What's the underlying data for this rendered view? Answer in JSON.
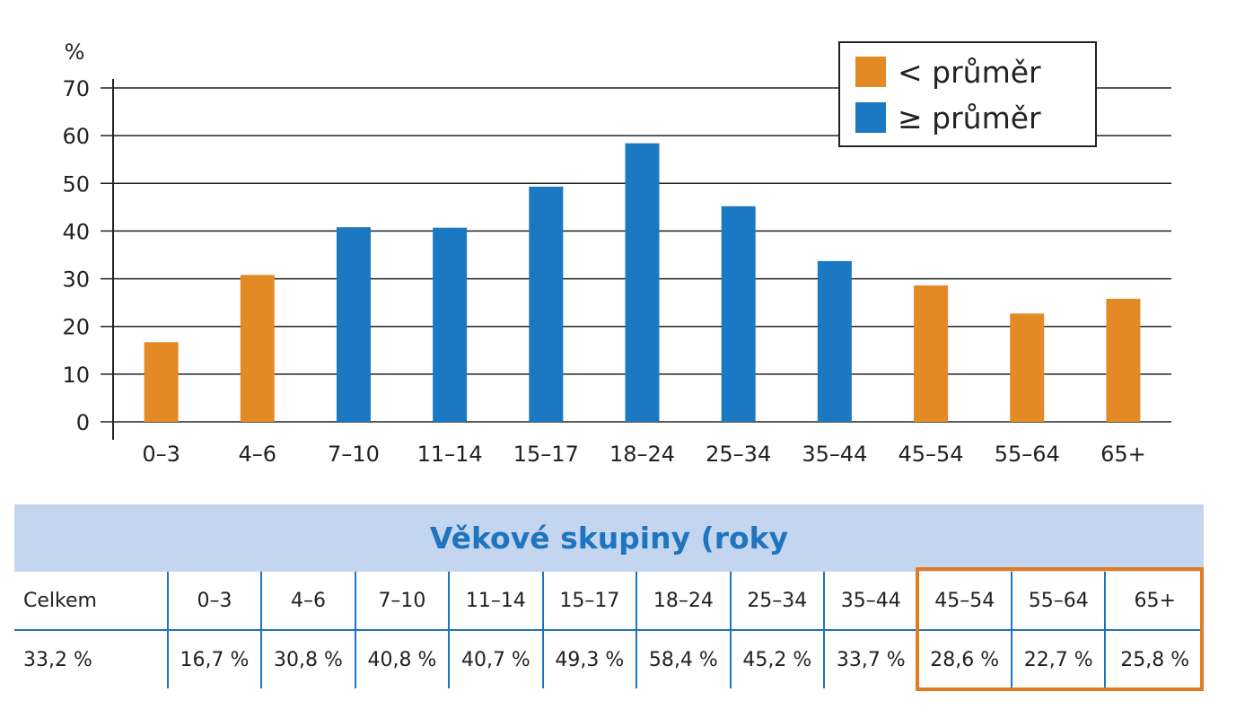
{
  "chart_data": {
    "type": "bar",
    "y_unit_label": "%",
    "ylim": [
      0,
      70
    ],
    "y_ticks": [
      0,
      10,
      20,
      30,
      40,
      50,
      60,
      70
    ],
    "grid": true,
    "categories": [
      "0–3",
      "4–6",
      "7–10",
      "11–14",
      "15–17",
      "18–24",
      "25–34",
      "35–44",
      "45–54",
      "55–64",
      "65+"
    ],
    "values": [
      16.7,
      30.8,
      40.8,
      40.7,
      49.3,
      58.4,
      45.2,
      33.7,
      28.6,
      22.7,
      25.8
    ],
    "groups": [
      "below",
      "below",
      "above",
      "above",
      "above",
      "above",
      "above",
      "above",
      "below",
      "below",
      "below"
    ],
    "legend": {
      "position": "top-right",
      "items": [
        {
          "key": "below",
          "label": "< průměr",
          "color": "#e48a24"
        },
        {
          "key": "above",
          "label": "≥ průměr",
          "color": "#1b78c3"
        }
      ]
    }
  },
  "table": {
    "title": "Věkové skupiny (roky",
    "headers": [
      "Celkem",
      "0–3",
      "4–6",
      "7–10",
      "11–14",
      "15–17",
      "18–24",
      "25–34",
      "35–44",
      "45–54",
      "55–64",
      "65+"
    ],
    "values": [
      "33,2 %",
      "16,7 %",
      "30,8 %",
      "40,8 %",
      "40,7 %",
      "49,3 %",
      "58,4 %",
      "45,2 %",
      "33,7 %",
      "28,6 %",
      "22,7 %",
      "25,8 %"
    ]
  },
  "colors": {
    "below_average": "#e48a24",
    "above_average": "#1b78c3",
    "table_header_bg": "#c4d5ef",
    "table_title": "#1f75bd",
    "highlight_border": "#e07b22"
  }
}
